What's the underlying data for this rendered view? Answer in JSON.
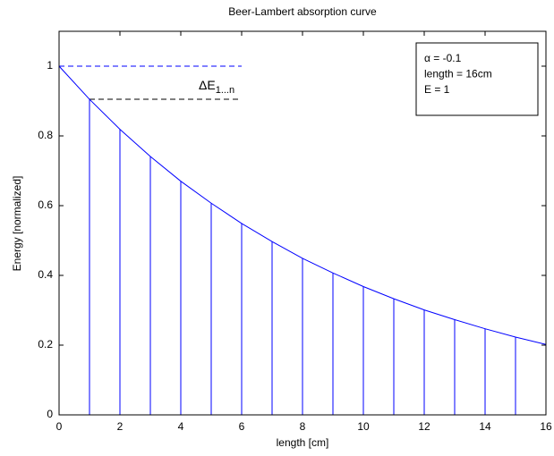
{
  "chart_data": {
    "type": "line",
    "title": "Beer-Lambert absorption curve",
    "xlabel": "length [cm]",
    "ylabel": "Energy [normalized]",
    "xlim": [
      0,
      16
    ],
    "ylim": [
      0,
      1.1
    ],
    "xticks": [
      0,
      2,
      4,
      6,
      8,
      10,
      12,
      14,
      16
    ],
    "yticks": [
      0,
      0.2,
      0.4,
      0.6,
      0.8,
      1
    ],
    "series": [
      {
        "type": "line",
        "color": "#0000ff",
        "x": [
          0,
          1,
          2,
          3,
          4,
          5,
          6,
          7,
          8,
          9,
          10,
          11,
          12,
          13,
          14,
          15,
          16
        ],
        "values": [
          1,
          0.905,
          0.819,
          0.741,
          0.67,
          0.607,
          0.549,
          0.497,
          0.449,
          0.407,
          0.368,
          0.333,
          0.301,
          0.273,
          0.247,
          0.223,
          0.202
        ]
      },
      {
        "type": "stem",
        "color": "#0000ff",
        "x": [
          1,
          2,
          3,
          4,
          5,
          6,
          7,
          8,
          9,
          10,
          11,
          12,
          13,
          14,
          15
        ],
        "values": [
          0.905,
          0.819,
          0.741,
          0.67,
          0.607,
          0.549,
          0.497,
          0.449,
          0.407,
          0.368,
          0.333,
          0.301,
          0.273,
          0.247,
          0.223
        ]
      }
    ],
    "reference_lines": [
      {
        "y": 1,
        "x": [
          0,
          6
        ],
        "color": "#0000ff"
      },
      {
        "y": 0.905,
        "x": [
          1,
          6
        ],
        "color": "#000000"
      }
    ],
    "annotation": {
      "text": "ΔE",
      "subscript": "1...n"
    },
    "text_box": [
      "α = -0.1",
      "length = 16cm",
      "E = 1"
    ]
  }
}
